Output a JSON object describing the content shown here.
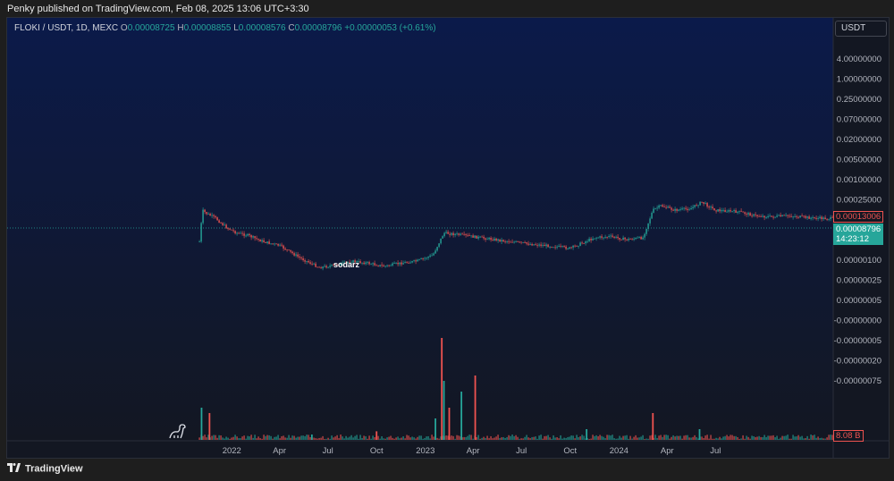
{
  "publisher_line": "Penky published on TradingView.com, Feb 08, 2025 13:06 UTC+3:30",
  "legend": {
    "symbol": "FLOKI / USDT, 1D, MEXC",
    "o_label": "O",
    "o": "0.00008725",
    "h_label": "H",
    "h": "0.00008855",
    "l_label": "L",
    "l": "0.00008576",
    "c_label": "C",
    "c": "0.00008796",
    "change": "+0.00000053 (+0.61%)"
  },
  "currency_button": "USDT",
  "footer_brand": "TradingView",
  "watermark_text": "sodarz",
  "colors": {
    "up": "#26a69a",
    "down": "#ef5350",
    "background_top": "#0b1a4a",
    "background_bottom": "#131722"
  },
  "price_labels": {
    "high_line": "0.00013006",
    "last_price": "0.00008796",
    "countdown": "14:23:12",
    "volume": "8.08 B"
  },
  "chart_data": {
    "type": "candlestick",
    "title": "FLOKI / USDT, 1D, MEXC",
    "y_scale": "log",
    "y_ticks": [
      "4.00000000",
      "1.00000000",
      "0.25000000",
      "0.07000000",
      "0.02000000",
      "0.00500000",
      "0.00100000",
      "0.00025000",
      "0.00002000",
      "0.00000500",
      "0.00000100",
      "0.00000025",
      "0.00000005",
      "-0.00000000",
      "-0.00000005",
      "-0.00000020",
      "-0.00000075"
    ],
    "x_ticks": [
      "2022",
      "Apr",
      "Jul",
      "Oct",
      "2023",
      "Apr",
      "Jul",
      "Oct",
      "2024",
      "Apr",
      "Jul"
    ],
    "price_series": {
      "name": "FLOKI/USDT",
      "points": [
        [
          "2021-11-01",
          3e-05
        ],
        [
          "2021-11-04",
          6e-05
        ],
        [
          "2021-11-06",
          0.00013
        ],
        [
          "2021-11-15",
          0.00011
        ],
        [
          "2021-12-01",
          9e-05
        ],
        [
          "2021-12-20",
          6e-05
        ],
        [
          "2022-01-10",
          4.5e-05
        ],
        [
          "2022-02-01",
          4e-05
        ],
        [
          "2022-03-01",
          3e-05
        ],
        [
          "2022-04-01",
          2.5e-05
        ],
        [
          "2022-05-10",
          1.4e-05
        ],
        [
          "2022-06-15",
          9e-06
        ],
        [
          "2022-07-15",
          1e-05
        ],
        [
          "2022-08-15",
          1.2e-05
        ],
        [
          "2022-09-15",
          1.1e-05
        ],
        [
          "2022-10-15",
          9.5e-06
        ],
        [
          "2022-11-15",
          1.1e-05
        ],
        [
          "2022-12-15",
          1.2e-05
        ],
        [
          "2023-01-15",
          1.6e-05
        ],
        [
          "2023-02-05",
          4.5e-05
        ],
        [
          "2023-03-01",
          4.2e-05
        ],
        [
          "2023-04-15",
          3.6e-05
        ],
        [
          "2023-06-01",
          3.1e-05
        ],
        [
          "2023-07-15",
          2.7e-05
        ],
        [
          "2023-09-01",
          2.4e-05
        ],
        [
          "2023-10-01",
          2.2e-05
        ],
        [
          "2023-11-15",
          3.6e-05
        ],
        [
          "2023-12-15",
          3.8e-05
        ],
        [
          "2024-01-15",
          3.3e-05
        ],
        [
          "2024-02-15",
          3.6e-05
        ],
        [
          "2024-03-05",
          0.00013
        ],
        [
          "2024-03-20",
          0.00016
        ],
        [
          "2024-04-15",
          0.00013
        ],
        [
          "2024-05-15",
          0.00014
        ],
        [
          "2024-06-05",
          0.00019
        ],
        [
          "2024-07-01",
          0.00013
        ],
        [
          "2024-08-15",
          0.00012
        ],
        [
          "2024-09-15",
          0.0001
        ],
        [
          "2024-10-15",
          9.5e-05
        ],
        [
          "2024-11-15",
          0.0001
        ],
        [
          "2025-01-01",
          9e-05
        ],
        [
          "2025-02-08",
          8.796e-05
        ]
      ]
    },
    "volume_series": {
      "name": "Volume",
      "points": [
        [
          "2021-11-05",
          0.3
        ],
        [
          "2021-11-20",
          0.25
        ],
        [
          "2022-06-01",
          0.05
        ],
        [
          "2022-10-01",
          0.08
        ],
        [
          "2023-01-20",
          0.2
        ],
        [
          "2023-02-01",
          0.95
        ],
        [
          "2023-02-05",
          0.55
        ],
        [
          "2023-02-15",
          0.3
        ],
        [
          "2023-03-10",
          0.45
        ],
        [
          "2023-04-05",
          0.6
        ],
        [
          "2023-11-01",
          0.1
        ],
        [
          "2024-03-05",
          0.25
        ],
        [
          "2024-06-01",
          0.1
        ]
      ]
    },
    "high_line": 0.00013006,
    "last_close": 8.796e-05
  }
}
